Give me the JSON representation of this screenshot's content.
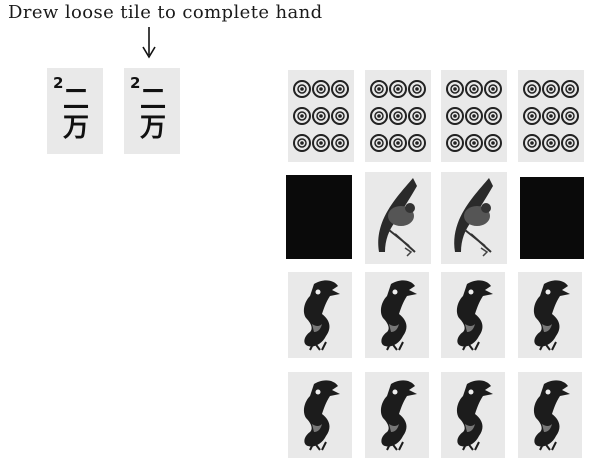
{
  "caption": "Drew loose tile to complete hand",
  "hand_tiles": [
    {
      "number": "2",
      "characters": "二\n万"
    },
    {
      "number": "2",
      "characters": "二\n万"
    }
  ],
  "melds": [
    {
      "name": "pung-nine-circles",
      "tiles": [
        "nine-circles",
        "nine-circles",
        "nine-circles",
        "nine-circles"
      ]
    },
    {
      "name": "kong-bamboo-bird",
      "tiles": [
        "face-down",
        "bamboo-bird",
        "bamboo-bird",
        "face-down"
      ]
    },
    {
      "name": "pung-dragon-a",
      "tiles": [
        "dragon",
        "dragon",
        "dragon",
        "dragon"
      ]
    },
    {
      "name": "pung-dragon-b",
      "tiles": [
        "dragon",
        "dragon",
        "dragon",
        "dragon"
      ]
    }
  ]
}
